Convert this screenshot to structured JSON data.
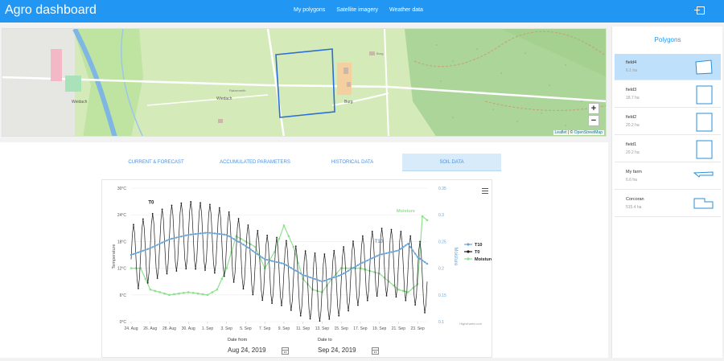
{
  "app": {
    "title": "Agro dashboard"
  },
  "nav": {
    "items": [
      "My polygons",
      "Satellite imagery",
      "Weather data"
    ]
  },
  "map": {
    "zoom_in": "+",
    "zoom_out": "−",
    "places": [
      "Weidach",
      "Wiedach",
      "Ratzenreith",
      "Burg",
      "Burg"
    ],
    "attribution": {
      "leaflet": "Leaflet",
      "sep": " | © ",
      "osm": "OpenStreetMap"
    }
  },
  "sidebar": {
    "title": "Polygons",
    "polygons": [
      {
        "name": "field4",
        "area": "6.1 ha",
        "active": true
      },
      {
        "name": "field3",
        "area": "18.7 ha",
        "active": false
      },
      {
        "name": "field2",
        "area": "20.2 ha",
        "active": false
      },
      {
        "name": "field1",
        "area": "20.2 ha",
        "active": false
      },
      {
        "name": "My farm",
        "area": "6.6 ha",
        "active": false
      },
      {
        "name": "Corcoran",
        "area": "515.4 ha",
        "active": false
      }
    ]
  },
  "tabs": [
    {
      "label": "Current & forecast",
      "active": false
    },
    {
      "label": "Accumulated parameters",
      "active": false
    },
    {
      "label": "Historical data",
      "active": false
    },
    {
      "label": "Soil data",
      "active": true
    }
  ],
  "colors": {
    "t10": "#6aa5d6",
    "t0": "#1b1b1b",
    "moisture": "#8fe08f",
    "primary": "#2196f3"
  },
  "chart_data": {
    "type": "line",
    "ylabel": "Temperature",
    "y2label": "Moisture",
    "ylim": [
      0,
      30
    ],
    "y2lim": [
      0.1,
      0.35
    ],
    "yticks": [
      "0°C",
      "6°C",
      "12°C",
      "18°C",
      "24°C",
      "30°C"
    ],
    "y2ticks": [
      "0.1",
      "0.15",
      "0.2",
      "0.25",
      "0.3",
      "0.35"
    ],
    "xticks": [
      "24. Aug",
      "26. Aug",
      "28. Aug",
      "30. Aug",
      "1. Sep",
      "3. Sep",
      "5. Sep",
      "7. Sep",
      "9. Sep",
      "11. Sep",
      "13. Sep",
      "15. Sep",
      "17. Sep",
      "19. Sep",
      "21. Sep",
      "23. Sep"
    ],
    "x_range_days": [
      0,
      31
    ],
    "series": [
      {
        "name": "T10",
        "axis": "left",
        "points": [
          [
            0,
            15
          ],
          [
            2,
            16.5
          ],
          [
            4,
            18.5
          ],
          [
            6,
            19.5
          ],
          [
            8,
            20
          ],
          [
            10,
            19.5
          ],
          [
            12,
            17
          ],
          [
            14,
            14
          ],
          [
            16,
            13
          ],
          [
            18,
            10.5
          ],
          [
            20,
            9
          ],
          [
            22,
            10.5
          ],
          [
            24,
            13
          ],
          [
            26,
            15
          ],
          [
            28,
            16
          ],
          [
            29,
            17.5
          ],
          [
            30,
            14.5
          ],
          [
            31,
            13
          ]
        ]
      },
      {
        "name": "T0",
        "axis": "left",
        "amp": 7.5,
        "points": [
          [
            0,
            14
          ],
          [
            2,
            16.5
          ],
          [
            4,
            18.5
          ],
          [
            6,
            19.5
          ],
          [
            8,
            19
          ],
          [
            10,
            17.5
          ],
          [
            12,
            14.5
          ],
          [
            14,
            12
          ],
          [
            16,
            11
          ],
          [
            18,
            8.5
          ],
          [
            20,
            7.5
          ],
          [
            22,
            9
          ],
          [
            24,
            11.5
          ],
          [
            26,
            13.5
          ],
          [
            28,
            13
          ],
          [
            30,
            11
          ],
          [
            31,
            9
          ]
        ]
      },
      {
        "name": "Moisture",
        "axis": "right",
        "points": [
          [
            0,
            0.2
          ],
          [
            1,
            0.2
          ],
          [
            2,
            0.16
          ],
          [
            4,
            0.15
          ],
          [
            6,
            0.155
          ],
          [
            8,
            0.15
          ],
          [
            9,
            0.16
          ],
          [
            10,
            0.2
          ],
          [
            11,
            0.26
          ],
          [
            13,
            0.24
          ],
          [
            14,
            0.2
          ],
          [
            15,
            0.23
          ],
          [
            16,
            0.28
          ],
          [
            17,
            0.24
          ],
          [
            18,
            0.18
          ],
          [
            19,
            0.16
          ],
          [
            20,
            0.155
          ],
          [
            21,
            0.18
          ],
          [
            22,
            0.2
          ],
          [
            24,
            0.2
          ],
          [
            26,
            0.19
          ],
          [
            28,
            0.16
          ],
          [
            29,
            0.155
          ],
          [
            30,
            0.17
          ],
          [
            30.3,
            0.3
          ],
          [
            31,
            0.29
          ]
        ]
      }
    ],
    "legend": [
      "T10",
      "T0",
      "Moisture"
    ],
    "legend_position": "right",
    "annotations": [
      {
        "text": "T0",
        "series": "T0"
      },
      {
        "text": "T10",
        "series": "T10"
      },
      {
        "text": "Moisture",
        "series": "Moisture"
      }
    ],
    "credits": "Highcharts.com"
  },
  "dates": {
    "from_label": "Date from",
    "from_value": "Aug 24, 2019",
    "to_label": "Date to",
    "to_value": "Sep 24, 2019"
  }
}
